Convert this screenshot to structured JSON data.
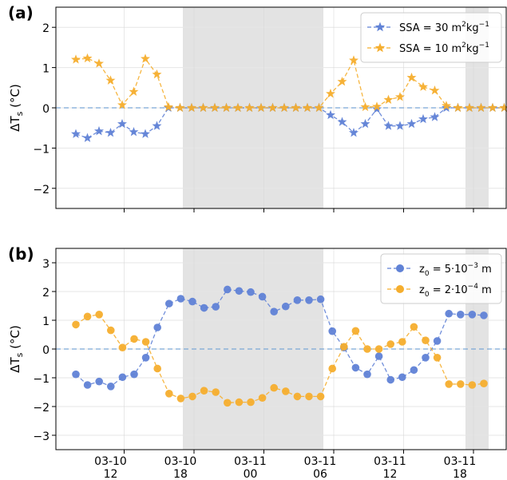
{
  "chart_data": [
    {
      "type": "line",
      "panel_label": "(a)",
      "ylabel": "ΔT",
      "ylabel_sub": "s",
      "ylabel_unit": " (°C)",
      "ylim": [
        -2.5,
        2.5
      ],
      "yticks": [
        -2,
        -1,
        0,
        1,
        2
      ],
      "ytick_labels": [
        "−2",
        "−1",
        "0",
        "1",
        "2"
      ],
      "grid": true,
      "legend_position": "top-right",
      "zero_line": true,
      "series": [
        {
          "name": "SSA = 30 m²kg⁻¹",
          "legend": {
            "base": "SSA = 30 m",
            "sup1": "2",
            "mid": "kg",
            "sup2": "−1"
          },
          "color": "#6082d6",
          "marker": "star",
          "x": [
            0,
            1,
            2,
            3,
            4,
            5,
            6,
            7,
            8,
            9,
            10,
            11,
            12,
            13,
            14,
            15,
            16,
            17,
            18,
            19,
            20,
            21,
            22,
            23,
            24,
            25,
            26,
            27,
            28,
            29,
            30,
            31,
            32,
            33,
            34,
            35,
            36,
            37
          ],
          "values": [
            -0.65,
            -0.75,
            -0.58,
            -0.62,
            -0.4,
            -0.6,
            -0.65,
            -0.45,
            0,
            0,
            0,
            0,
            0,
            0,
            0,
            0,
            0,
            0,
            0,
            0,
            0,
            0,
            -0.18,
            -0.35,
            -0.62,
            -0.4,
            -0.03,
            -0.45,
            -0.45,
            -0.4,
            -0.28,
            -0.23,
            0,
            0,
            0,
            0,
            0,
            0
          ]
        },
        {
          "name": "SSA = 10 m²kg⁻¹",
          "legend": {
            "base": "SSA = 10 m",
            "sup1": "2",
            "mid": "kg",
            "sup2": "−1"
          },
          "color": "#f5ae2e",
          "marker": "star",
          "x": [
            0,
            1,
            2,
            3,
            4,
            5,
            6,
            7,
            8,
            9,
            10,
            11,
            12,
            13,
            14,
            15,
            16,
            17,
            18,
            19,
            20,
            21,
            22,
            23,
            24,
            25,
            26,
            27,
            28,
            29,
            30,
            31,
            32,
            33,
            34,
            35,
            36,
            37
          ],
          "values": [
            1.2,
            1.23,
            1.1,
            0.68,
            0.07,
            0.4,
            1.22,
            0.83,
            0.02,
            0,
            0,
            0,
            0,
            0,
            0,
            0,
            0,
            0,
            0,
            0,
            0,
            0,
            0.35,
            0.65,
            1.18,
            0.02,
            0.03,
            0.2,
            0.27,
            0.75,
            0.52,
            0.43,
            0.05,
            0,
            0,
            0,
            0,
            0
          ]
        }
      ]
    },
    {
      "type": "line",
      "panel_label": "(b)",
      "ylabel": "ΔT",
      "ylabel_sub": "s",
      "ylabel_unit": " (°C)",
      "ylim": [
        -3.5,
        3.5
      ],
      "yticks": [
        -3,
        -2,
        -1,
        0,
        1,
        2,
        3
      ],
      "ytick_labels": [
        "−3",
        "−2",
        "−1",
        "0",
        "1",
        "2",
        "3"
      ],
      "grid": true,
      "legend_position": "top-right",
      "zero_line": true,
      "series": [
        {
          "name": "z₀ = 5·10⁻³ m",
          "legend": {
            "base": "z",
            "sub": "0",
            "mid": " = 5·10",
            "sup": "−3",
            "tail": " m"
          },
          "color": "#6082d6",
          "marker": "circle",
          "x": [
            0,
            1,
            2,
            3,
            4,
            5,
            6,
            7,
            8,
            9,
            10,
            11,
            12,
            13,
            14,
            15,
            16,
            17,
            18,
            19,
            20,
            21,
            22,
            23,
            24,
            25,
            26,
            27,
            28,
            29,
            30,
            31,
            32,
            33,
            34,
            35
          ],
          "values": [
            -0.88,
            -1.25,
            -1.13,
            -1.3,
            -0.98,
            -0.88,
            -0.3,
            0.75,
            1.58,
            1.75,
            1.65,
            1.43,
            1.47,
            2.07,
            2.02,
            1.98,
            1.82,
            1.3,
            1.48,
            1.7,
            1.7,
            1.73,
            0.62,
            0.05,
            -0.65,
            -0.88,
            -0.25,
            -1.07,
            -0.98,
            -0.73,
            -0.3,
            0.28,
            1.23,
            1.2,
            1.2,
            1.17
          ]
        },
        {
          "name": "z₀ = 2·10⁻⁴ m",
          "legend": {
            "base": "z",
            "sub": "0",
            "mid": " = 2·10",
            "sup": "−4",
            "tail": " m"
          },
          "color": "#f5ae2e",
          "marker": "circle",
          "x": [
            0,
            1,
            2,
            3,
            4,
            5,
            6,
            7,
            8,
            9,
            10,
            11,
            12,
            13,
            14,
            15,
            16,
            17,
            18,
            19,
            20,
            21,
            22,
            23,
            24,
            25,
            26,
            27,
            28,
            29,
            30,
            31,
            32,
            33,
            34,
            35
          ],
          "values": [
            0.85,
            1.13,
            1.2,
            0.65,
            0.05,
            0.35,
            0.25,
            -0.68,
            -1.55,
            -1.72,
            -1.65,
            -1.45,
            -1.5,
            -1.87,
            -1.85,
            -1.85,
            -1.7,
            -1.35,
            -1.47,
            -1.65,
            -1.65,
            -1.65,
            -0.68,
            0.08,
            0.63,
            0.0,
            0.0,
            0.17,
            0.25,
            0.77,
            0.3,
            -0.3,
            -1.22,
            -1.22,
            -1.25,
            -1.2
          ]
        }
      ]
    }
  ],
  "x_axis": {
    "ticks": [
      {
        "date": "03-10",
        "hour": "12"
      },
      {
        "date": "03-10",
        "hour": "18"
      },
      {
        "date": "03-11",
        "hour": "00"
      },
      {
        "date": "03-11",
        "hour": "06"
      },
      {
        "date": "03-11",
        "hour": "12"
      },
      {
        "date": "03-11",
        "hour": "18"
      }
    ]
  }
}
